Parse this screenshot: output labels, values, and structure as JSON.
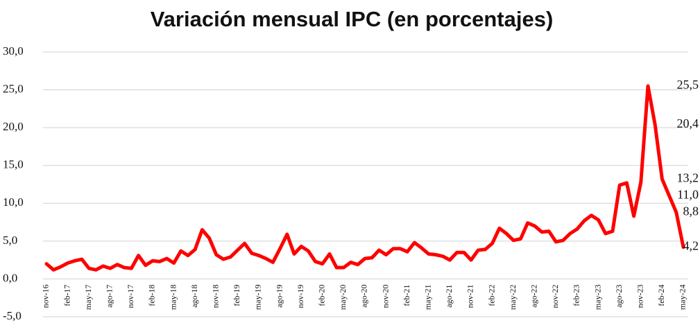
{
  "chart_data": {
    "type": "line",
    "title": "Variación mensual IPC (en porcentajes)",
    "categories": [
      "nov-16",
      null,
      null,
      "feb-17",
      null,
      null,
      "may-17",
      null,
      null,
      "ago-17",
      null,
      null,
      "nov-17",
      null,
      null,
      "feb-18",
      null,
      null,
      "may-18",
      null,
      null,
      "ago-18",
      null,
      null,
      "nov-18",
      null,
      null,
      "feb-19",
      null,
      null,
      "may-19",
      null,
      null,
      "ago-19",
      null,
      null,
      "nov-19",
      null,
      null,
      "feb-20",
      null,
      null,
      "may-20",
      null,
      null,
      "ago-20",
      null,
      null,
      "nov-20",
      null,
      null,
      "feb-21",
      null,
      null,
      "may-21",
      null,
      null,
      "ago-21",
      null,
      null,
      "nov-21",
      null,
      null,
      "feb-22",
      null,
      null,
      "may-22",
      null,
      null,
      "ago-22",
      null,
      null,
      "nov-22",
      null,
      null,
      "feb-23",
      null,
      null,
      "may-23",
      null,
      null,
      "ago-23",
      null,
      null,
      "nov-23",
      null,
      null,
      "feb-24",
      null,
      null,
      "may-24"
    ],
    "values": [
      2.0,
      1.2,
      1.6,
      2.1,
      2.4,
      2.6,
      1.4,
      1.2,
      1.7,
      1.4,
      1.9,
      1.5,
      1.4,
      3.1,
      1.8,
      2.4,
      2.3,
      2.7,
      2.1,
      3.7,
      3.1,
      3.9,
      6.5,
      5.4,
      3.2,
      2.6,
      2.9,
      3.8,
      4.7,
      3.4,
      3.1,
      2.7,
      2.2,
      4.0,
      5.9,
      3.3,
      4.3,
      3.7,
      2.3,
      2.0,
      3.3,
      1.5,
      1.5,
      2.2,
      1.9,
      2.7,
      2.8,
      3.8,
      3.2,
      4.0,
      4.0,
      3.6,
      4.8,
      4.1,
      3.3,
      3.2,
      3.0,
      2.5,
      3.5,
      3.5,
      2.5,
      3.8,
      3.9,
      4.7,
      6.7,
      6.0,
      5.1,
      5.3,
      7.4,
      7.0,
      6.2,
      6.3,
      4.9,
      5.1,
      6.0,
      6.6,
      7.7,
      8.4,
      7.8,
      6.0,
      6.3,
      12.4,
      12.7,
      8.3,
      12.8,
      25.5,
      20.4,
      13.2,
      11.0,
      8.8,
      4.2
    ],
    "value_labels": [
      null,
      null,
      null,
      null,
      null,
      null,
      null,
      null,
      null,
      null,
      null,
      null,
      null,
      null,
      null,
      null,
      null,
      null,
      null,
      null,
      null,
      null,
      null,
      null,
      null,
      null,
      null,
      null,
      null,
      null,
      null,
      null,
      null,
      null,
      null,
      null,
      null,
      null,
      null,
      null,
      null,
      null,
      null,
      null,
      null,
      null,
      null,
      null,
      null,
      null,
      null,
      null,
      null,
      null,
      null,
      null,
      null,
      null,
      null,
      null,
      null,
      null,
      null,
      null,
      null,
      null,
      null,
      null,
      null,
      null,
      null,
      null,
      null,
      null,
      null,
      null,
      null,
      null,
      null,
      null,
      null,
      null,
      null,
      null,
      null,
      "25,5",
      "20,4",
      "13,2",
      "11,0",
      "8,8",
      "4,2"
    ],
    "color": "#ff0000",
    "ylim": [
      -5,
      30
    ],
    "yticks": [
      {
        "value": -5,
        "label": "-5,0"
      },
      {
        "value": 0,
        "label": "0,0"
      },
      {
        "value": 5,
        "label": "5,0"
      },
      {
        "value": 10,
        "label": "10,0"
      },
      {
        "value": 15,
        "label": "15,0"
      },
      {
        "value": 20,
        "label": "20,0"
      },
      {
        "value": 25,
        "label": "25,0"
      },
      {
        "value": 30,
        "label": "30,0"
      }
    ],
    "grid": true
  }
}
